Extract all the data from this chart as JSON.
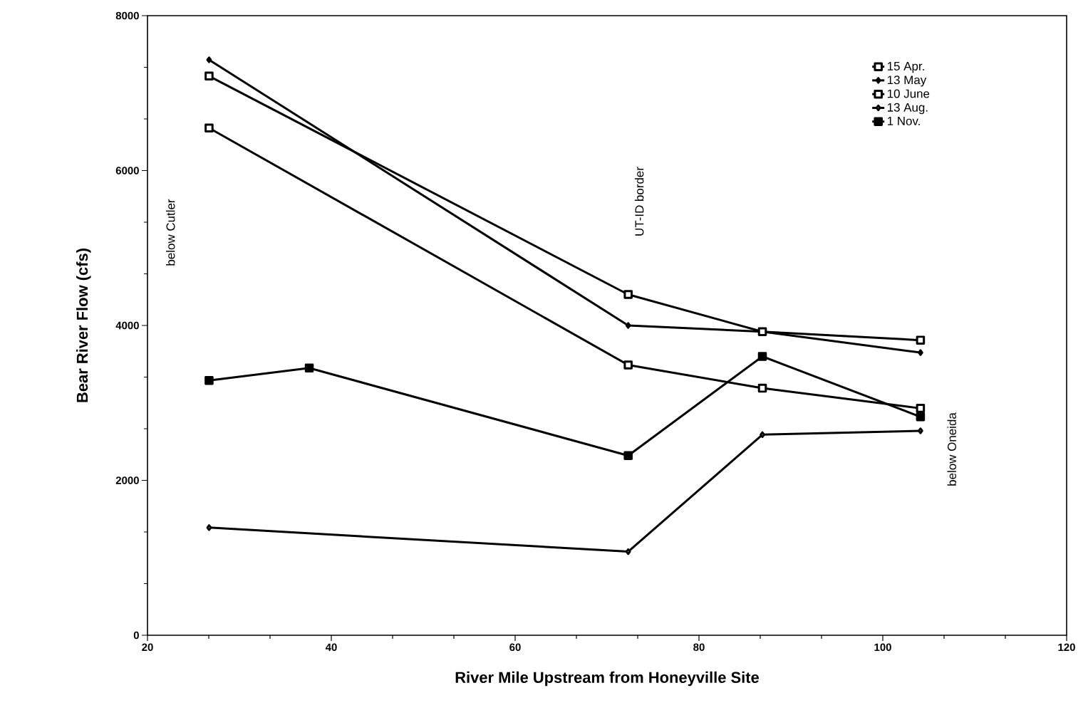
{
  "chart_data": {
    "type": "line",
    "xlabel": "River Mile Upstream from Honeyville Site",
    "ylabel": "Bear River Flow (cfs)",
    "xlim": [
      20,
      120
    ],
    "xticks": [
      20,
      40,
      60,
      80,
      100,
      120
    ],
    "ylim": [
      0,
      8000
    ],
    "yticks": [
      0,
      2000,
      4000,
      6000,
      8000
    ],
    "legend": "top right",
    "grid": false,
    "line_style": "solid",
    "annotations": [
      "below Cutler",
      "UT-ID border",
      "below Oneida"
    ],
    "series": [
      {
        "name": "15 Apr.",
        "color": "#000000",
        "marker": "square",
        "x": [
          26.7,
          72.3,
          86.9,
          104.1
        ],
        "values": [
          6550,
          3490,
          3190,
          2930
        ]
      },
      {
        "name": "13 May",
        "color": "#000000",
        "marker": "diamond",
        "x": [
          26.7,
          72.3,
          86.9,
          104.1
        ],
        "values": [
          7430,
          4000,
          3920,
          3650
        ]
      },
      {
        "name": "10 June",
        "color": "#000000",
        "marker": "square",
        "x": [
          26.7,
          72.3,
          86.9,
          104.1
        ],
        "values": [
          7220,
          4400,
          3920,
          3810
        ]
      },
      {
        "name": "13 Aug.",
        "color": "#000000",
        "marker": "diamond",
        "x": [
          26.7,
          72.3,
          86.9,
          104.1
        ],
        "values": [
          1390,
          1080,
          2590,
          2640
        ]
      },
      {
        "name": "1 Nov.",
        "color": "#000000",
        "marker": "square",
        "x": [
          26.7,
          37.6,
          72.3,
          86.9,
          104.1
        ],
        "values": [
          3290,
          3450,
          2320,
          3600,
          2820
        ]
      }
    ]
  }
}
